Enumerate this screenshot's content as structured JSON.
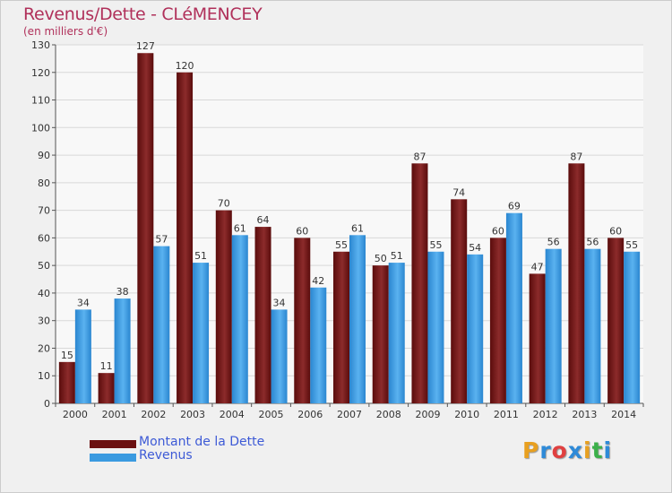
{
  "header": {
    "title": "Revenus/Dette - CLéMENCEY",
    "subtitle": "(en milliers d'€)"
  },
  "chart_data": {
    "type": "bar",
    "categories": [
      "2000",
      "2001",
      "2002",
      "2003",
      "2004",
      "2005",
      "2006",
      "2007",
      "2008",
      "2009",
      "2010",
      "2011",
      "2012",
      "2013",
      "2014"
    ],
    "series": [
      {
        "name": "Montant de la Dette",
        "color": "#7a1b1b",
        "values": [
          15,
          11,
          127,
          120,
          70,
          64,
          60,
          55,
          50,
          87,
          74,
          60,
          47,
          87,
          60
        ]
      },
      {
        "name": "Revenus",
        "color": "#3a9ae0",
        "values": [
          34,
          38,
          57,
          51,
          61,
          34,
          42,
          61,
          51,
          55,
          54,
          69,
          56,
          56,
          55
        ]
      }
    ],
    "ylim": [
      0,
      130
    ],
    "yticks": [
      0,
      10,
      20,
      30,
      40,
      50,
      60,
      70,
      80,
      90,
      100,
      110,
      120,
      130
    ],
    "grid": true,
    "legend_position": "bottom-left"
  },
  "legend": {
    "items": [
      {
        "label": "Montant de la Dette",
        "color": "#6b1010"
      },
      {
        "label": "Revenus",
        "color": "#3a9ae0"
      }
    ]
  },
  "logo": {
    "letters": [
      "P",
      "r",
      "o",
      "x",
      "i",
      "t",
      "i"
    ],
    "colors": [
      "#e8a020",
      "#2e8ad8",
      "#e04040",
      "#2e8ad8",
      "#e8a020",
      "#3bb04a",
      "#2e8ad8"
    ]
  }
}
